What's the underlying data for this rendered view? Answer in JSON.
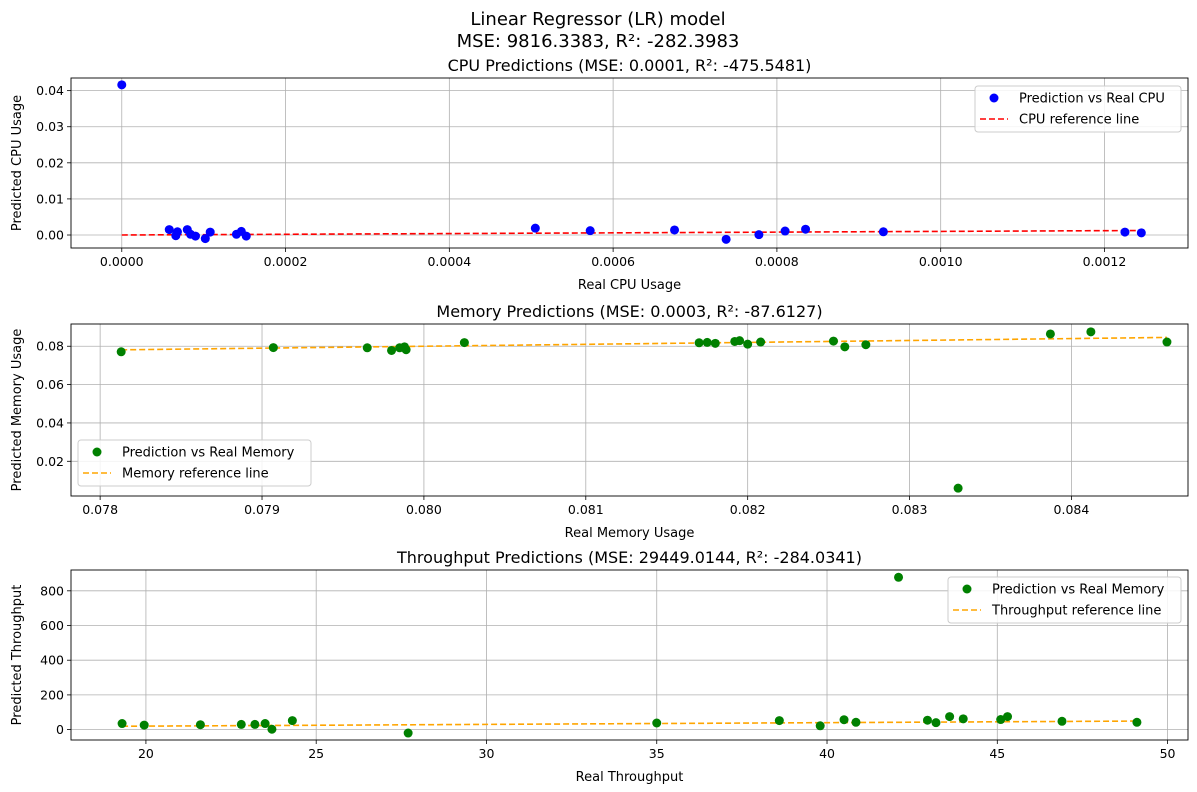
{
  "figure": {
    "title_line1": "Linear Regressor (LR) model",
    "title_line2": "MSE: 9816.3383, R²: -282.3983"
  },
  "colors": {
    "blue": "#0000ff",
    "green": "#008000",
    "red": "#ff0000",
    "orange": "#ffa500",
    "grid": "#b0b0b0"
  },
  "chart_data": [
    {
      "type": "scatter",
      "title": "CPU Predictions (MSE: 0.0001, R²: -475.5481)",
      "xlabel": "Real CPU Usage",
      "ylabel": "Predicted CPU Usage",
      "xlim": [
        -6.2e-05,
        0.001302
      ],
      "ylim": [
        -0.0036,
        0.0435
      ],
      "xticks": [
        0.0,
        0.0002,
        0.0004,
        0.0006,
        0.0008,
        0.001,
        0.0012
      ],
      "xtick_labels": [
        "0.0000",
        "0.0002",
        "0.0004",
        "0.0006",
        "0.0008",
        "0.0010",
        "0.0012"
      ],
      "yticks": [
        0.0,
        0.01,
        0.02,
        0.03,
        0.04
      ],
      "ytick_labels": [
        "0.00",
        "0.01",
        "0.02",
        "0.03",
        "0.04"
      ],
      "grid": true,
      "legend_position": "top-right",
      "series": [
        {
          "name": "Prediction vs Real CPU",
          "kind": "scatter",
          "color": "#0000ff",
          "points": [
            [
              0.0,
              0.0416
            ],
            [
              5.8e-05,
              0.0015
            ],
            [
              6.6e-05,
              -0.0002
            ],
            [
              6.8e-05,
              0.0009
            ],
            [
              8e-05,
              0.0015
            ],
            [
              8.4e-05,
              0.0002
            ],
            [
              9e-05,
              -0.0003
            ],
            [
              0.000102,
              -0.001
            ],
            [
              0.000108,
              0.0008
            ],
            [
              0.00014,
              0.0002
            ],
            [
              0.000146,
              0.001
            ],
            [
              0.000152,
              -0.0003
            ],
            [
              0.000505,
              0.0019
            ],
            [
              0.000572,
              0.0012
            ],
            [
              0.000675,
              0.0014
            ],
            [
              0.000738,
              -0.0012
            ],
            [
              0.000778,
              0.0001
            ],
            [
              0.00081,
              0.0011
            ],
            [
              0.000835,
              0.0016
            ],
            [
              0.00093,
              0.0009
            ],
            [
              0.001225,
              0.0008
            ],
            [
              0.001245,
              0.0006
            ]
          ]
        },
        {
          "name": "CPU reference line",
          "kind": "dashed-line",
          "color": "#ff0000",
          "points": [
            [
              0.0,
              0.0
            ],
            [
              0.001245,
              0.001245
            ]
          ]
        }
      ]
    },
    {
      "type": "scatter",
      "title": "Memory Predictions (MSE: 0.0003, R²: -87.6127)",
      "xlabel": "Real Memory Usage",
      "ylabel": "Predicted Memory Usage",
      "xlim": [
        0.07782,
        0.08472
      ],
      "ylim": [
        0.0019,
        0.0916
      ],
      "xticks": [
        0.078,
        0.079,
        0.08,
        0.081,
        0.082,
        0.083,
        0.084
      ],
      "xtick_labels": [
        "0.078",
        "0.079",
        "0.080",
        "0.081",
        "0.082",
        "0.083",
        "0.084"
      ],
      "yticks": [
        0.02,
        0.04,
        0.06,
        0.08
      ],
      "ytick_labels": [
        "0.02",
        "0.04",
        "0.06",
        "0.08"
      ],
      "grid": true,
      "legend_position": "lower-left",
      "series": [
        {
          "name": "Prediction vs Real Memory",
          "kind": "scatter",
          "color": "#008000",
          "points": [
            [
              0.07813,
              0.0771
            ],
            [
              0.07907,
              0.0793
            ],
            [
              0.07965,
              0.0792
            ],
            [
              0.0798,
              0.0778
            ],
            [
              0.07985,
              0.0792
            ],
            [
              0.07988,
              0.0797
            ],
            [
              0.07989,
              0.0782
            ],
            [
              0.08025,
              0.0819
            ],
            [
              0.0817,
              0.0818
            ],
            [
              0.08175,
              0.082
            ],
            [
              0.0818,
              0.0815
            ],
            [
              0.08192,
              0.0825
            ],
            [
              0.08195,
              0.0829
            ],
            [
              0.082,
              0.0811
            ],
            [
              0.08208,
              0.0822
            ],
            [
              0.08253,
              0.0827
            ],
            [
              0.0826,
              0.0797
            ],
            [
              0.08273,
              0.0808
            ],
            [
              0.0833,
              0.006
            ],
            [
              0.08387,
              0.0864
            ],
            [
              0.08412,
              0.0875
            ],
            [
              0.08459,
              0.0822
            ]
          ]
        },
        {
          "name": "Memory reference line",
          "kind": "dashed-line",
          "color": "#ffa500",
          "points": [
            [
              0.07813,
              0.07813
            ],
            [
              0.08459,
              0.08459
            ]
          ]
        }
      ]
    },
    {
      "type": "scatter",
      "title": "Throughput Predictions (MSE: 29449.0144, R²: -284.0341)",
      "xlabel": "Real Throughput",
      "ylabel": "Predicted Throughput",
      "xlim": [
        17.8,
        50.6
      ],
      "ylim": [
        -60,
        920
      ],
      "xticks": [
        20,
        25,
        30,
        35,
        40,
        45,
        50
      ],
      "xtick_labels": [
        "20",
        "25",
        "30",
        "35",
        "40",
        "45",
        "50"
      ],
      "yticks": [
        0,
        200,
        400,
        600,
        800
      ],
      "ytick_labels": [
        "0",
        "200",
        "400",
        "600",
        "800"
      ],
      "grid": true,
      "legend_position": "top-right",
      "series": [
        {
          "name": "Prediction vs Real Memory",
          "kind": "scatter",
          "color": "#008000",
          "points": [
            [
              19.3,
              35
            ],
            [
              19.95,
              26
            ],
            [
              21.6,
              28
            ],
            [
              22.8,
              30
            ],
            [
              23.2,
              30
            ],
            [
              23.5,
              35
            ],
            [
              23.7,
              2
            ],
            [
              24.3,
              52
            ],
            [
              27.7,
              -20
            ],
            [
              35.0,
              38
            ],
            [
              38.6,
              52
            ],
            [
              39.8,
              22
            ],
            [
              40.5,
              57
            ],
            [
              40.85,
              42
            ],
            [
              42.1,
              878
            ],
            [
              42.95,
              54
            ],
            [
              43.2,
              40
            ],
            [
              43.6,
              75
            ],
            [
              44.0,
              62
            ],
            [
              45.1,
              58
            ],
            [
              45.3,
              75
            ],
            [
              46.9,
              48
            ],
            [
              49.1,
              42
            ]
          ]
        },
        {
          "name": "Throughput reference line",
          "kind": "dashed-line",
          "color": "#ffa500",
          "points": [
            [
              19.3,
              19.3
            ],
            [
              49.1,
              49.1
            ]
          ]
        }
      ]
    }
  ]
}
